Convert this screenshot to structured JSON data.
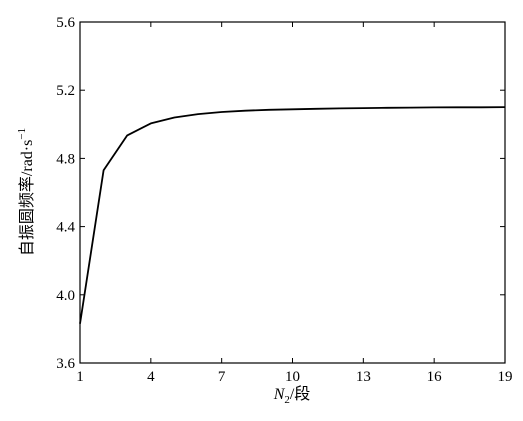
{
  "chart_data": {
    "type": "line",
    "title": "",
    "xlabel": {
      "var": "N",
      "sub": "2",
      "unit": "/段"
    },
    "ylabel": {
      "text": "自振圆频率/rad·s",
      "sup": "−1"
    },
    "xlim": [
      1,
      19
    ],
    "ylim": [
      3.6,
      5.6
    ],
    "xticks": [
      1,
      4,
      7,
      10,
      13,
      16,
      19
    ],
    "yticks": [
      3.6,
      4.0,
      4.4,
      4.8,
      5.2,
      5.6
    ],
    "xtick_labels": [
      "1",
      "4",
      "7",
      "10",
      "13",
      "16",
      "19"
    ],
    "ytick_labels": [
      "3.6",
      "4.0",
      "4.4",
      "4.8",
      "5.2",
      "5.6"
    ],
    "grid": false,
    "series": [
      {
        "x": [
          1,
          2,
          3,
          4,
          5,
          6,
          7,
          8,
          9,
          10,
          11,
          12,
          13,
          14,
          15,
          16,
          17,
          18,
          19
        ],
        "y": [
          3.83,
          4.73,
          4.935,
          5.005,
          5.04,
          5.06,
          5.072,
          5.08,
          5.085,
          5.088,
          5.091,
          5.093,
          5.095,
          5.097,
          5.098,
          5.099,
          5.1,
          5.1,
          5.101
        ]
      }
    ]
  }
}
